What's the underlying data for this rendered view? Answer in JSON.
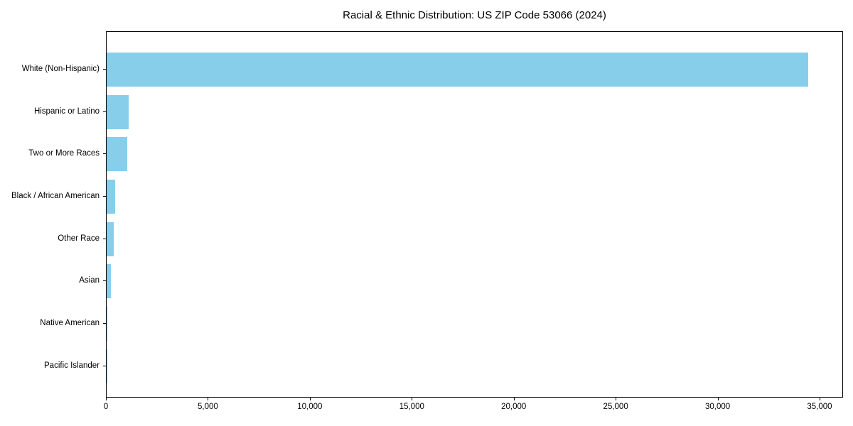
{
  "chart_data": {
    "type": "bar",
    "orientation": "horizontal",
    "title": "Racial & Ethnic Distribution: US ZIP Code 53066 (2024)",
    "categories": [
      "White (Non-Hispanic)",
      "Hispanic or Latino",
      "Two or More Races",
      "Black / African American",
      "Other Race",
      "Asian",
      "Native American",
      "Pacific Islander"
    ],
    "values": [
      34400,
      1080,
      1000,
      430,
      340,
      220,
      40,
      10
    ],
    "xlabel": "",
    "ylabel": "",
    "xlim": [
      0,
      36150
    ],
    "x_ticks": [
      0,
      5000,
      10000,
      15000,
      20000,
      25000,
      30000,
      35000
    ],
    "x_tick_labels": [
      "0",
      "5,000",
      "10,000",
      "15,000",
      "20,000",
      "25,000",
      "30,000",
      "35,000"
    ],
    "bar_color": "#87CEEB",
    "frame_color": "#000000",
    "background_color": "#ffffff",
    "grid": "off",
    "legend": "none"
  }
}
